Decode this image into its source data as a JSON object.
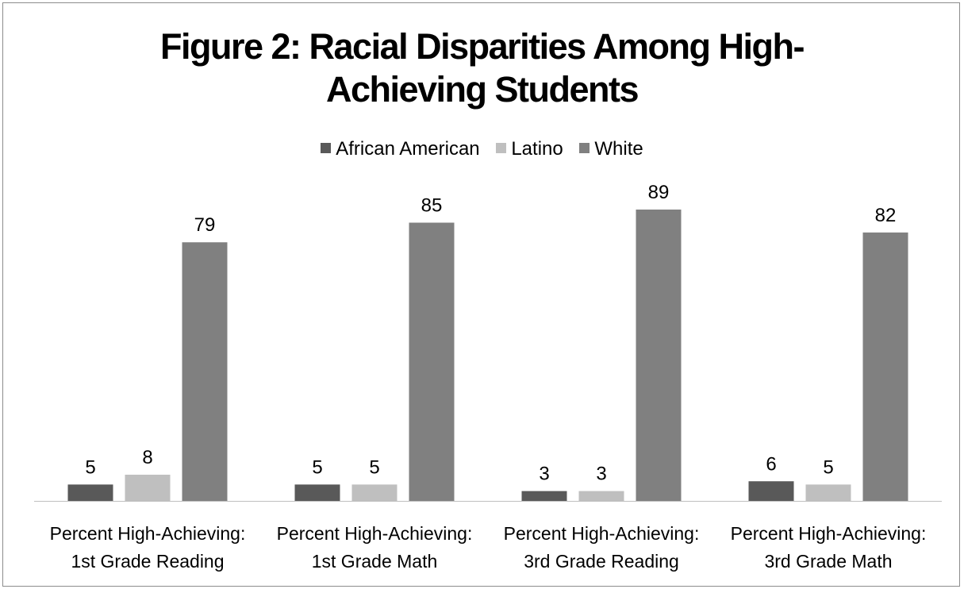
{
  "chart_data": {
    "type": "bar",
    "title": "Figure 2: Racial Disparities Among High-Achieving Students",
    "title_lines": [
      "Figure 2: Racial Disparities Among High-",
      "Achieving Students"
    ],
    "categories": [
      [
        "Percent High-Achieving:",
        "1st Grade Reading"
      ],
      [
        "Percent High-Achieving:",
        "1st Grade Math"
      ],
      [
        "Percent High-Achieving:",
        "3rd Grade Reading"
      ],
      [
        "Percent High-Achieving:",
        "3rd Grade Math"
      ]
    ],
    "series": [
      {
        "name": "African American",
        "values": [
          5,
          5,
          3,
          6
        ],
        "color": "#595959"
      },
      {
        "name": "Latino",
        "values": [
          8,
          5,
          3,
          5
        ],
        "color": "#bfbfbf"
      },
      {
        "name": "White",
        "values": [
          79,
          85,
          89,
          82
        ],
        "color": "#808080"
      }
    ],
    "xlabel": "",
    "ylabel": "",
    "ylim": [
      0,
      100
    ],
    "grid": false,
    "legend": "top-center",
    "data_labels": true
  }
}
